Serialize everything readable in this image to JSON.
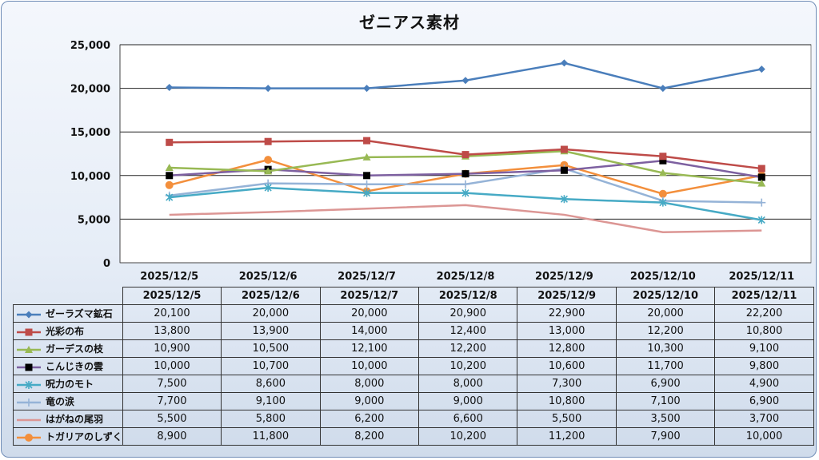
{
  "chart_data": {
    "type": "line",
    "title": "ゼニアス素材",
    "categories": [
      "2025/12/5",
      "2025/12/6",
      "2025/12/7",
      "2025/12/8",
      "2025/12/9",
      "2025/12/10",
      "2025/12/11"
    ],
    "ylim": [
      0,
      25000
    ],
    "yticks": [
      "0",
      "5,000",
      "10,000",
      "15,000",
      "20,000",
      "25,000"
    ],
    "ytick_values": [
      0,
      5000,
      10000,
      15000,
      20000,
      25000
    ],
    "grid": true,
    "legend": "data-table-below",
    "series": [
      {
        "name": "ゼーラズマ鉱石",
        "color": "#4a7ebb",
        "marker": "diamond",
        "values": [
          20100,
          20000,
          20000,
          20900,
          22900,
          20000,
          22200
        ],
        "labels": [
          "20,100",
          "20,000",
          "20,000",
          "20,900",
          "22,900",
          "20,000",
          "22,200"
        ]
      },
      {
        "name": "光彩の布",
        "color": "#be4b48",
        "marker": "square",
        "values": [
          13800,
          13900,
          14000,
          12400,
          13000,
          12200,
          10800
        ],
        "labels": [
          "13,800",
          "13,900",
          "14,000",
          "12,400",
          "13,000",
          "12,200",
          "10,800"
        ]
      },
      {
        "name": "ガーデスの枝",
        "color": "#98b954",
        "marker": "triangle",
        "values": [
          10900,
          10500,
          12100,
          12200,
          12800,
          10300,
          9100
        ],
        "labels": [
          "10,900",
          "10,500",
          "12,100",
          "12,200",
          "12,800",
          "10,300",
          "9,100"
        ]
      },
      {
        "name": "こんじきの雲",
        "color": "#7d60a0",
        "marker": "blacksquare",
        "values": [
          10000,
          10700,
          10000,
          10200,
          10600,
          11700,
          9800
        ],
        "labels": [
          "10,000",
          "10,700",
          "10,000",
          "10,200",
          "10,600",
          "11,700",
          "9,800"
        ]
      },
      {
        "name": "呪力のモト",
        "color": "#46aac5",
        "marker": "star",
        "values": [
          7500,
          8600,
          8000,
          8000,
          7300,
          6900,
          4900
        ],
        "labels": [
          "7,500",
          "8,600",
          "8,000",
          "8,000",
          "7,300",
          "6,900",
          "4,900"
        ]
      },
      {
        "name": "竜の涙",
        "color": "#95b3d7",
        "marker": "plus",
        "values": [
          7700,
          9100,
          9000,
          9000,
          10800,
          7100,
          6900
        ],
        "labels": [
          "7,700",
          "9,100",
          "9,000",
          "9,000",
          "10,800",
          "7,100",
          "6,900"
        ]
      },
      {
        "name": "はがねの尾羽",
        "color": "#dc9694",
        "marker": "none",
        "values": [
          5500,
          5800,
          6200,
          6600,
          5500,
          3500,
          3700
        ],
        "labels": [
          "5,500",
          "5,800",
          "6,200",
          "6,600",
          "5,500",
          "3,500",
          "3,700"
        ]
      },
      {
        "name": "トガリアのしずく",
        "color": "#f38f3c",
        "marker": "circle",
        "values": [
          8900,
          11800,
          8200,
          10200,
          11200,
          7900,
          10000
        ],
        "labels": [
          "8,900",
          "11,800",
          "8,200",
          "10,200",
          "11,200",
          "7,900",
          "10,000"
        ]
      }
    ]
  }
}
